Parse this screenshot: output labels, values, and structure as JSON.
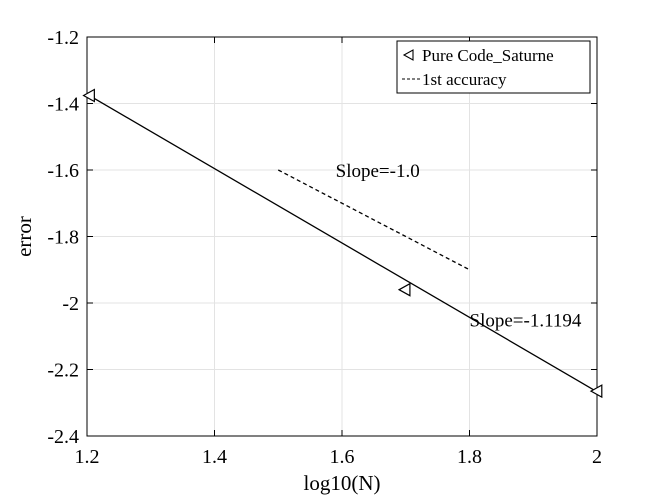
{
  "chart_data": {
    "type": "line",
    "xlabel": "log10(N)",
    "ylabel": "error",
    "xlim": [
      1.2,
      2.0
    ],
    "ylim": [
      -2.4,
      -1.2
    ],
    "x_ticks": [
      1.2,
      1.4,
      1.6,
      1.8,
      2.0
    ],
    "x_tick_labels": [
      "1.2",
      "1.4",
      "1.6",
      "1.8",
      "2"
    ],
    "y_ticks": [
      -1.2,
      -1.4,
      -1.6,
      -1.8,
      -2.0,
      -2.2,
      -2.4
    ],
    "y_tick_labels": [
      "-1.2",
      "-1.4",
      "-1.6",
      "-1.8",
      "-2",
      "-2.2",
      "-2.4"
    ],
    "grid": true,
    "legend_position": "top-right",
    "series": [
      {
        "name": "Pure  Code_Saturne",
        "marker": "triangle-left",
        "line": "none",
        "color": "#000000",
        "x": [
          1.204,
          1.699,
          2.0
        ],
        "y": [
          -1.376,
          -1.96,
          -2.265
        ]
      },
      {
        "name": "1st  accuracy",
        "marker": "none",
        "line": "dashed",
        "color": "#000000",
        "x": [
          1.5,
          1.8
        ],
        "y": [
          -1.6,
          -1.9
        ]
      }
    ],
    "fit_line": {
      "line": "solid",
      "color": "#000000",
      "x": [
        1.2,
        2.0
      ],
      "y": [
        -1.372,
        -2.267
      ]
    },
    "annotations": [
      {
        "text": "Slope=-1.0",
        "x": 1.59,
        "y": -1.6
      },
      {
        "text": "Slope=-1.1194",
        "x": 1.8,
        "y": -2.05
      }
    ]
  }
}
